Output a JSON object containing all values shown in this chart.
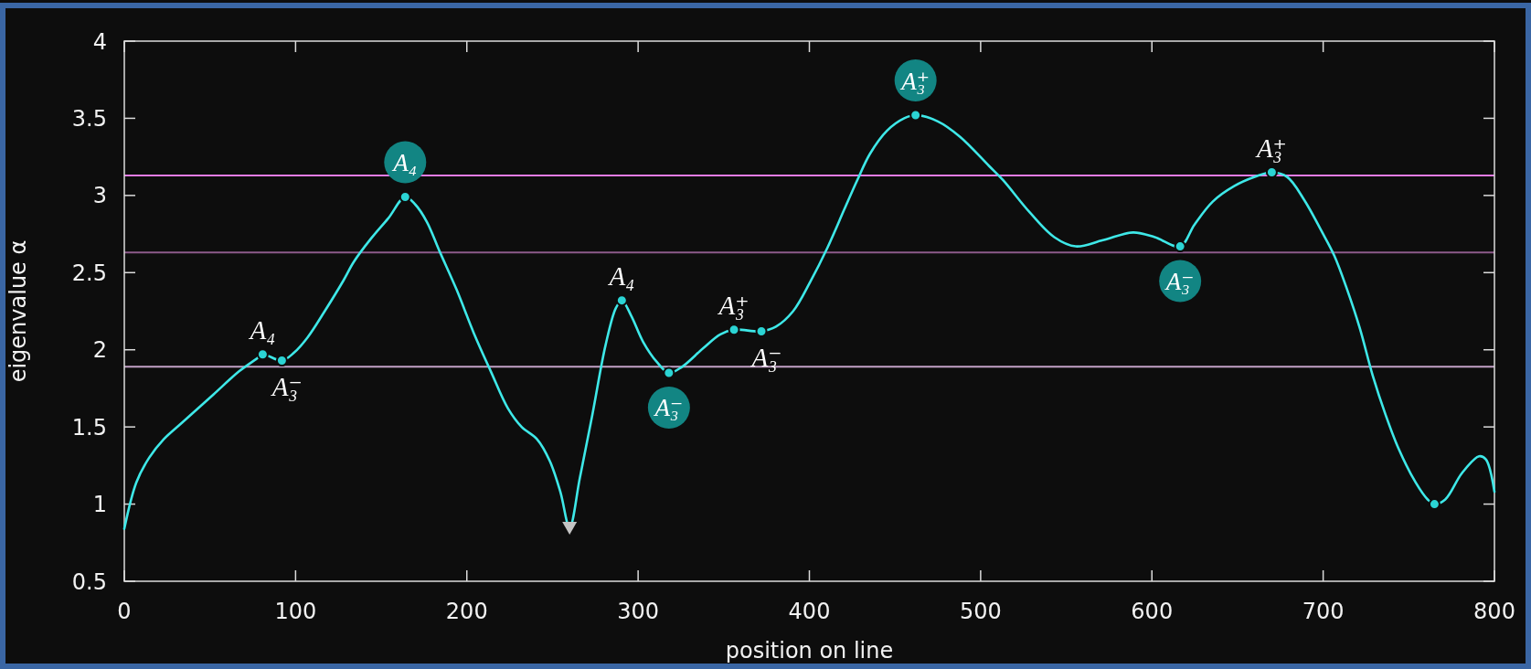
{
  "chart_data": {
    "type": "line",
    "xlabel": "position on line",
    "ylabel": "eigenvalue α",
    "xlim": [
      0,
      800
    ],
    "ylim": [
      0.5,
      4
    ],
    "xticks": [
      0,
      100,
      200,
      300,
      400,
      500,
      600,
      700,
      800
    ],
    "yticks": [
      0.5,
      1,
      1.5,
      2,
      2.5,
      3,
      3.5,
      4
    ],
    "series": [
      {
        "type": "line",
        "color": "#3ee8e8",
        "x": [
          0,
          7,
          14.5,
          23,
          34,
          52,
          67,
          77,
          80.8,
          92,
          99,
          107,
          117,
          128,
          134,
          144,
          154,
          164,
          170,
          176.6,
          184,
          194,
          204,
          214,
          224,
          232,
          241,
          248.4,
          254.6,
          260,
          266,
          273.3,
          281,
          287,
          290.5,
          296,
          303,
          311,
          318,
          325.7,
          338,
          348,
          356,
          372,
          380.5,
          390.5,
          400.5,
          410.5,
          420.4,
          428,
          435.4,
          445.4,
          455.4,
          462,
          475,
          488,
          505,
          513,
          528.7,
          543,
          555.5,
          571.4,
          589,
          601.7,
          616.5,
          624.8,
          635.5,
          648,
          660,
          670,
          679,
          689,
          699,
          706.5,
          714,
          721.4,
          729,
          736.4,
          744,
          754,
          761,
          765,
          771.3,
          781,
          791,
          795,
          800
        ],
        "values": [
          0.84,
          1.14,
          1.3,
          1.42,
          1.53,
          1.71,
          1.86,
          1.94,
          1.97,
          1.93,
          1.98,
          2.08,
          2.25,
          2.45,
          2.57,
          2.72,
          2.85,
          2.99,
          2.94,
          2.83,
          2.64,
          2.39,
          2.11,
          1.86,
          1.62,
          1.5,
          1.42,
          1.28,
          1.08,
          0.85,
          1.17,
          1.58,
          2.03,
          2.27,
          2.32,
          2.22,
          2.05,
          1.92,
          1.85,
          1.89,
          2.01,
          2.1,
          2.13,
          2.12,
          2.15,
          2.25,
          2.44,
          2.66,
          2.91,
          3.1,
          3.27,
          3.42,
          3.5,
          3.52,
          3.48,
          3.38,
          3.19,
          3.1,
          2.89,
          2.73,
          2.67,
          2.71,
          2.76,
          2.73,
          2.67,
          2.81,
          2.96,
          3.06,
          3.12,
          3.15,
          3.12,
          2.97,
          2.77,
          2.61,
          2.39,
          2.14,
          1.83,
          1.58,
          1.36,
          1.14,
          1.03,
          1.0,
          1.03,
          1.2,
          1.31,
          1.29,
          1.08
        ]
      },
      {
        "type": "scatter",
        "marker": "circle",
        "color": "#2bd4d4",
        "x": [
          80.8,
          92,
          164,
          290.5,
          318,
          356,
          372,
          462,
          616.5,
          670,
          765
        ],
        "values": [
          1.97,
          1.93,
          2.99,
          2.32,
          1.85,
          2.13,
          2.12,
          3.52,
          2.67,
          3.15,
          1.0
        ]
      },
      {
        "type": "scatter",
        "marker": "triangle",
        "color": "#c4c4c4",
        "x": [
          260
        ],
        "values": [
          0.85
        ]
      }
    ],
    "ref_lines": [
      {
        "axis": "y",
        "value": 3.13,
        "color": "#e47be4"
      },
      {
        "axis": "y",
        "value": 2.63,
        "color": "#8c5a8a"
      },
      {
        "axis": "y",
        "value": 1.89,
        "color": "#c2a2c6"
      }
    ],
    "annotations": [
      {
        "text": "A₄",
        "x": 80.8,
        "y": 1.97
      },
      {
        "text": "A₃⁻",
        "x": 92,
        "y": 1.93
      },
      {
        "text": "A₄",
        "x": 164,
        "y": 2.99
      },
      {
        "text": "A₄",
        "x": 290.5,
        "y": 2.32
      },
      {
        "text": "A₃⁻",
        "x": 318,
        "y": 1.85
      },
      {
        "text": "A₃⁺",
        "x": 356,
        "y": 2.13
      },
      {
        "text": "A₃⁻",
        "x": 372,
        "y": 2.12
      },
      {
        "text": "A₃⁺",
        "x": 462,
        "y": 3.52
      },
      {
        "text": "A₃⁻",
        "x": 616.5,
        "y": 2.67
      },
      {
        "text": "A₃⁺",
        "x": 670,
        "y": 3.15
      }
    ]
  }
}
